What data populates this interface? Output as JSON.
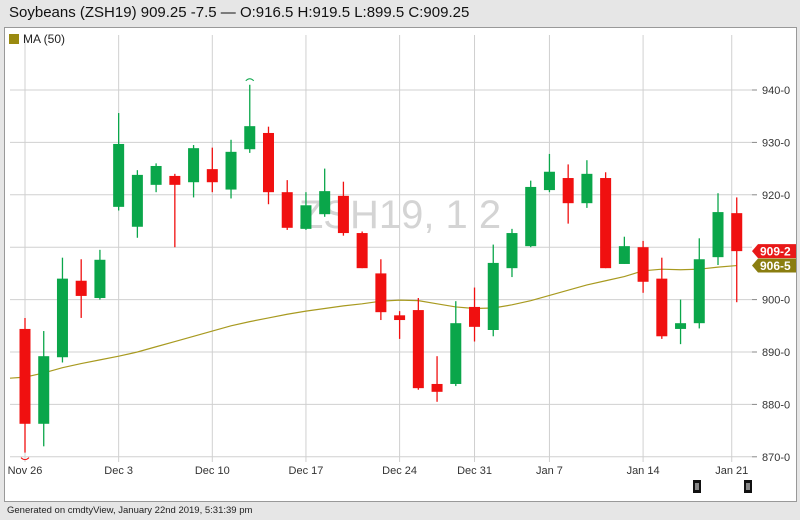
{
  "header": {
    "title": "Soybeans (ZSH19) 909.25 -7.5 — O:916.5 H:919.5 L:899.5 C:909.25"
  },
  "legend": {
    "label": "MA (50)",
    "color": "#9a8a10"
  },
  "watermark": "ZSH19, 1 2",
  "footer": "Generated on cmdtyView, January 22nd 2019, 5:31:39 pm",
  "colors": {
    "up": "#0aa64a",
    "down": "#f01010",
    "ma": "#a89a20",
    "grid": "#d0d0d0"
  },
  "chart_data": {
    "type": "candlestick",
    "title": "Soybeans (ZSH19)",
    "ylim": [
      868,
      945
    ],
    "yticks": [
      870,
      880,
      890,
      900,
      910,
      920,
      930,
      940
    ],
    "ytick_labels": [
      "870-0",
      "880-0",
      "890-0",
      "900-0",
      "",
      "920-0",
      "930-0",
      "940-0"
    ],
    "xtick_labels": [
      {
        "i": 0,
        "label": "Nov 26"
      },
      {
        "i": 5,
        "label": "Dec 3"
      },
      {
        "i": 10,
        "label": "Dec 10"
      },
      {
        "i": 15,
        "label": "Dec 17"
      },
      {
        "i": 20,
        "label": "Dec 24"
      },
      {
        "i": 24,
        "label": "Dec 31"
      },
      {
        "i": 28,
        "label": "Jan 7"
      },
      {
        "i": 33,
        "label": "Jan 14"
      },
      {
        "i": 38,
        "label": "Jan 21"
      }
    ],
    "candles": [
      [
        894.4,
        896.5,
        870.8,
        876.3
      ],
      [
        876.3,
        894,
        872,
        889.2
      ],
      [
        889,
        908,
        888,
        904
      ],
      [
        903.6,
        907.7,
        896.5,
        900.7
      ],
      [
        900.3,
        909.5,
        900,
        907.6
      ],
      [
        917.7,
        935.6,
        917,
        929.7
      ],
      [
        913.9,
        924.7,
        911.8,
        923.8
      ],
      [
        921.9,
        926,
        920.5,
        925.5
      ],
      [
        923.6,
        924,
        910,
        921.9
      ],
      [
        922.4,
        929.5,
        919.5,
        928.9
      ],
      [
        924.9,
        929,
        920.5,
        922.4
      ],
      [
        921,
        930.5,
        919.3,
        928.2
      ],
      [
        928.7,
        941,
        928,
        933.1
      ],
      [
        931.8,
        933,
        918.2,
        920.5
      ],
      [
        920.5,
        922.8,
        913.3,
        913.7
      ],
      [
        913.5,
        920.5,
        913.3,
        918
      ],
      [
        916.3,
        925,
        915.8,
        920.7
      ],
      [
        919.8,
        922.5,
        912.2,
        912.7
      ],
      [
        912.7,
        913,
        906,
        906
      ],
      [
        905,
        907.7,
        896.1,
        897.6
      ],
      [
        897,
        897.8,
        892.5,
        896.1
      ],
      [
        898,
        900.3,
        882.8,
        883.1
      ],
      [
        883.9,
        889.2,
        880.5,
        882.4
      ],
      [
        883.9,
        899.7,
        883.5,
        895.5
      ],
      [
        898.6,
        902.3,
        892,
        894.8
      ],
      [
        894.2,
        910.5,
        893,
        907
      ],
      [
        906,
        913.5,
        904.3,
        912.7
      ],
      [
        910.2,
        922.7,
        910,
        921.5
      ],
      [
        920.9,
        927.8,
        920.5,
        924.4
      ],
      [
        923.2,
        925.8,
        914.5,
        918.4
      ],
      [
        918.4,
        926.6,
        917.5,
        924
      ],
      [
        923.2,
        924.3,
        906,
        906
      ],
      [
        906.8,
        912,
        906.8,
        910.2
      ],
      [
        910,
        911.2,
        901.3,
        903.4
      ],
      [
        904,
        908,
        892.5,
        893
      ],
      [
        894.4,
        900,
        891.5,
        895.5
      ],
      [
        895.5,
        911.7,
        894.5,
        907.7
      ],
      [
        908.1,
        920.3,
        906.6,
        916.7
      ],
      [
        916.5,
        919.5,
        899.5,
        909.25
      ]
    ],
    "ma50": [
      885.2,
      886,
      887,
      887.8,
      888.5,
      889.2,
      890,
      891,
      892,
      893,
      894,
      895,
      895.8,
      896.5,
      897.2,
      897.8,
      898.3,
      898.8,
      899.2,
      899.7,
      899.9,
      899.8,
      899.2,
      898.6,
      898.3,
      898.4,
      899,
      899.8,
      900.8,
      901.8,
      902.8,
      903.6,
      904.4,
      905.5,
      905.8,
      905.7,
      905.8,
      906.2,
      906.5
    ],
    "last_price_tag": "909-2",
    "ma_tag": "906-5"
  }
}
